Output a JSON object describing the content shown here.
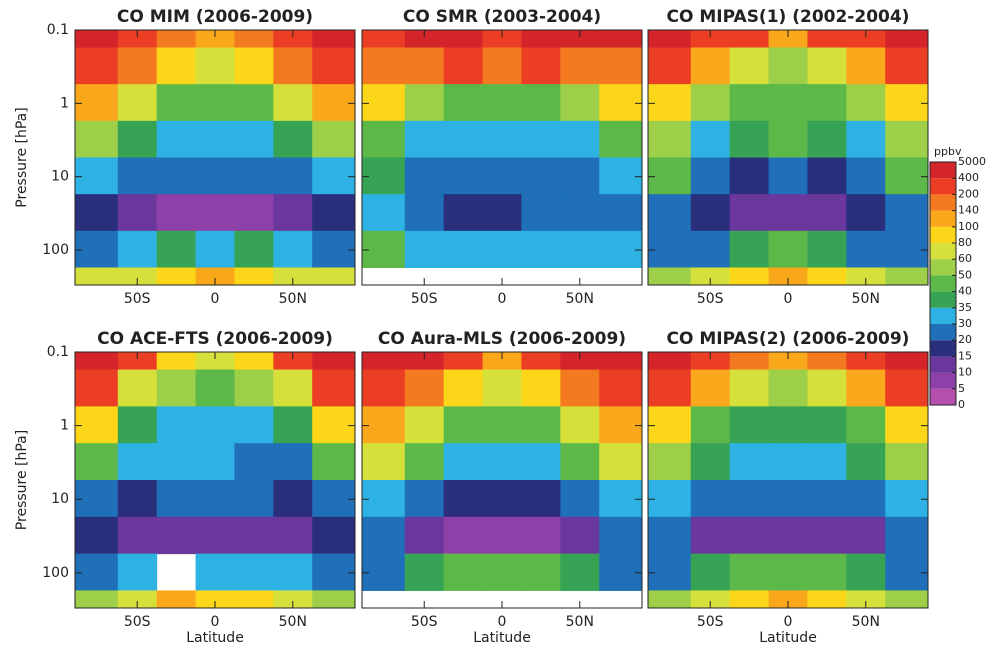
{
  "chart_data": [
    {
      "type": "contour",
      "title": "CO MIM (2006-2009)",
      "ylabel": "Pressure [hPa]",
      "show_ytick_labels": true,
      "x": [
        -75,
        -50,
        -25,
        0,
        25,
        50,
        75
      ],
      "y": [
        0.1,
        0.3,
        1,
        3,
        10,
        30,
        100,
        300
      ],
      "log_y": true,
      "xlim": [
        -90,
        90
      ],
      "ylim": [
        300,
        0.1
      ],
      "xticks": [
        {
          "value": -50,
          "label": "50S"
        },
        0,
        {
          "value": 50,
          "label": "50N"
        }
      ],
      "yticks": [
        0.1,
        1,
        10,
        100
      ],
      "z": [
        [
          400,
          300,
          150,
          100,
          150,
          300,
          400
        ],
        [
          200,
          150,
          80,
          60,
          80,
          150,
          200
        ],
        [
          100,
          60,
          45,
          40,
          45,
          60,
          100
        ],
        [
          50,
          35,
          32,
          32,
          32,
          35,
          50
        ],
        [
          30,
          20,
          20,
          22,
          20,
          20,
          30
        ],
        [
          15,
          12,
          8,
          8,
          8,
          12,
          15
        ],
        [
          25,
          30,
          35,
          30,
          35,
          30,
          25
        ],
        [
          60,
          70,
          90,
          100,
          90,
          70,
          60
        ]
      ]
    },
    {
      "type": "contour",
      "title": "CO SMR (2003-2004)",
      "show_ytick_labels": false,
      "x": [
        -75,
        -50,
        -25,
        0,
        25,
        50,
        75
      ],
      "y": [
        0.1,
        0.3,
        1,
        3,
        10,
        30,
        100,
        300
      ],
      "log_y": true,
      "xlim": [
        -90,
        90
      ],
      "ylim": [
        300,
        0.1
      ],
      "xticks": [
        {
          "value": -50,
          "label": "50S"
        },
        0,
        {
          "value": 50,
          "label": "50N"
        }
      ],
      "yticks": [
        0.1,
        1,
        10,
        100
      ],
      "z": [
        [
          300,
          400,
          400,
          300,
          400,
          400,
          400
        ],
        [
          150,
          150,
          200,
          150,
          200,
          150,
          150
        ],
        [
          80,
          50,
          40,
          40,
          45,
          50,
          80
        ],
        [
          40,
          30,
          32,
          32,
          32,
          30,
          40
        ],
        [
          35,
          25,
          25,
          25,
          25,
          25,
          30
        ],
        [
          30,
          25,
          15,
          18,
          25,
          25,
          25
        ],
        [
          40,
          30,
          30,
          30,
          30,
          30,
          30
        ],
        [
          null,
          null,
          null,
          null,
          null,
          null,
          null
        ]
      ]
    },
    {
      "type": "contour",
      "title": "CO MIPAS(1) (2002-2004)",
      "show_ytick_labels": false,
      "x": [
        -75,
        -50,
        -25,
        0,
        25,
        50,
        75
      ],
      "y": [
        0.1,
        0.3,
        1,
        3,
        10,
        30,
        100,
        300
      ],
      "log_y": true,
      "xlim": [
        -90,
        90
      ],
      "ylim": [
        300,
        0.1
      ],
      "xticks": [
        {
          "value": -50,
          "label": "50S"
        },
        0,
        {
          "value": 50,
          "label": "50N"
        }
      ],
      "yticks": [
        0.1,
        1,
        10,
        100
      ],
      "z": [
        [
          400,
          300,
          200,
          100,
          200,
          300,
          400
        ],
        [
          200,
          120,
          60,
          50,
          60,
          120,
          200
        ],
        [
          80,
          50,
          40,
          40,
          40,
          50,
          80
        ],
        [
          50,
          30,
          35,
          40,
          35,
          30,
          50
        ],
        [
          40,
          22,
          18,
          25,
          18,
          22,
          40
        ],
        [
          25,
          15,
          12,
          14,
          12,
          15,
          25
        ],
        [
          20,
          25,
          35,
          40,
          35,
          25,
          20
        ],
        [
          50,
          60,
          80,
          120,
          80,
          60,
          50
        ]
      ]
    },
    {
      "type": "contour",
      "title": "CO ACE-FTS (2006-2009)",
      "ylabel": "Pressure [hPa]",
      "xlabel": "Latitude",
      "show_ytick_labels": true,
      "x": [
        -75,
        -50,
        -25,
        0,
        25,
        50,
        75
      ],
      "y": [
        0.1,
        0.3,
        1,
        3,
        10,
        30,
        100,
        300
      ],
      "log_y": true,
      "xlim": [
        -90,
        90
      ],
      "ylim": [
        300,
        0.1
      ],
      "xticks": [
        {
          "value": -50,
          "label": "50S"
        },
        0,
        {
          "value": 50,
          "label": "50N"
        }
      ],
      "yticks": [
        0.1,
        1,
        10,
        100
      ],
      "z": [
        [
          400,
          200,
          80,
          60,
          80,
          200,
          400
        ],
        [
          200,
          60,
          50,
          45,
          50,
          60,
          200
        ],
        [
          80,
          35,
          30,
          32,
          30,
          35,
          80
        ],
        [
          40,
          30,
          30,
          30,
          28,
          28,
          40
        ],
        [
          20,
          18,
          22,
          25,
          22,
          18,
          20
        ],
        [
          15,
          12,
          10,
          10,
          10,
          12,
          15
        ],
        [
          25,
          30,
          null,
          30,
          30,
          30,
          25
        ],
        [
          50,
          60,
          100,
          80,
          80,
          60,
          50
        ]
      ]
    },
    {
      "type": "contour",
      "title": "CO Aura-MLS (2006-2009)",
      "xlabel": "Latitude",
      "show_ytick_labels": false,
      "x": [
        -75,
        -50,
        -25,
        0,
        25,
        50,
        75
      ],
      "y": [
        0.1,
        0.3,
        1,
        3,
        10,
        30,
        100,
        300
      ],
      "log_y": true,
      "xlim": [
        -90,
        90
      ],
      "ylim": [
        300,
        0.1
      ],
      "xticks": [
        {
          "value": -50,
          "label": "50S"
        },
        0,
        {
          "value": 50,
          "label": "50N"
        }
      ],
      "yticks": [
        0.1,
        1,
        10,
        100
      ],
      "z": [
        [
          400,
          400,
          200,
          100,
          200,
          400,
          400
        ],
        [
          200,
          150,
          80,
          60,
          80,
          150,
          200
        ],
        [
          100,
          60,
          45,
          45,
          45,
          60,
          100
        ],
        [
          60,
          40,
          32,
          32,
          32,
          40,
          60
        ],
        [
          30,
          20,
          15,
          15,
          15,
          20,
          30
        ],
        [
          20,
          12,
          8,
          8,
          8,
          12,
          20
        ],
        [
          25,
          35,
          40,
          40,
          40,
          35,
          25
        ],
        [
          null,
          null,
          null,
          null,
          null,
          null,
          null
        ]
      ]
    },
    {
      "type": "contour",
      "title": "CO MIPAS(2) (2006-2009)",
      "xlabel": "Latitude",
      "show_ytick_labels": false,
      "x": [
        -75,
        -50,
        -25,
        0,
        25,
        50,
        75
      ],
      "y": [
        0.1,
        0.3,
        1,
        3,
        10,
        30,
        100,
        300
      ],
      "log_y": true,
      "xlim": [
        -90,
        90
      ],
      "ylim": [
        300,
        0.1
      ],
      "xticks": [
        {
          "value": -50,
          "label": "50S"
        },
        0,
        {
          "value": 50,
          "label": "50N"
        }
      ],
      "yticks": [
        0.1,
        1,
        10,
        100
      ],
      "z": [
        [
          400,
          300,
          150,
          100,
          150,
          300,
          400
        ],
        [
          200,
          120,
          60,
          50,
          60,
          120,
          200
        ],
        [
          80,
          45,
          35,
          35,
          35,
          45,
          80
        ],
        [
          50,
          35,
          32,
          32,
          32,
          35,
          50
        ],
        [
          30,
          22,
          20,
          20,
          20,
          22,
          30
        ],
        [
          20,
          12,
          10,
          10,
          10,
          12,
          20
        ],
        [
          25,
          35,
          40,
          40,
          40,
          35,
          25
        ],
        [
          50,
          70,
          90,
          120,
          80,
          60,
          50
        ]
      ]
    }
  ],
  "colorbar": {
    "label": "ppbv",
    "levels": [
      0,
      5,
      10,
      15,
      20,
      30,
      35,
      40,
      50,
      60,
      80,
      100,
      140,
      200,
      400,
      5000
    ],
    "colors": [
      "#b44fae",
      "#8c40a8",
      "#6a389c",
      "#2a2f7c",
      "#1f70b8",
      "#2eb2e4",
      "#37a455",
      "#5cb848",
      "#9dcf48",
      "#d6e03a",
      "#fbd619",
      "#f9a71b",
      "#f47a20",
      "#ec3e25",
      "#d4252b"
    ]
  }
}
